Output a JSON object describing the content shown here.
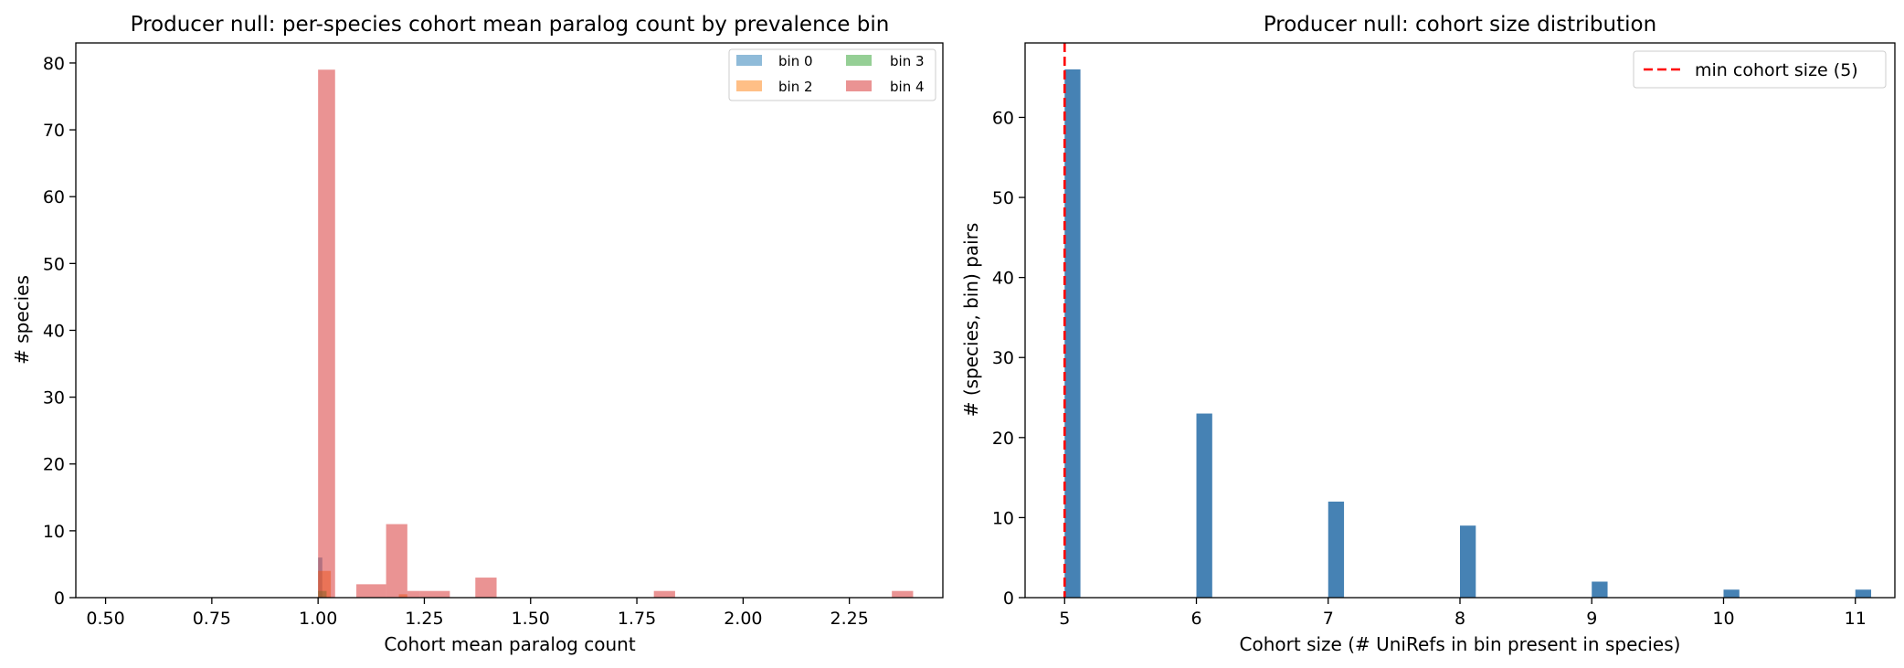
{
  "chart_data": [
    {
      "type": "bar",
      "title": "Producer null: per-species cohort mean paralog count by prevalence bin",
      "xlabel": "Cohort mean paralog count",
      "ylabel": "# species",
      "xlim": [
        0.43,
        2.47
      ],
      "ylim": [
        0,
        83
      ],
      "xticks": [
        "0.50",
        "0.75",
        "1.00",
        "1.25",
        "1.50",
        "1.75",
        "2.00",
        "2.25"
      ],
      "yticks": [
        "0",
        "10",
        "20",
        "30",
        "40",
        "50",
        "60",
        "70",
        "80"
      ],
      "grid": false,
      "legend_position": "top-right",
      "legend_columns": 2,
      "series": [
        {
          "name": "bin 0",
          "color": "#1f77b4",
          "opacity": 0.5,
          "bins": [
            [
              1.0,
              1.01,
              6
            ]
          ]
        },
        {
          "name": "bin 2",
          "color": "#ff7f0e",
          "opacity": 0.5,
          "bins": [
            [
              1.0,
              1.03,
              4
            ],
            [
              1.19,
              1.21,
              0.5
            ]
          ]
        },
        {
          "name": "bin 3",
          "color": "#2ca02c",
          "opacity": 0.5,
          "bins": [
            [
              1.0,
              1.02,
              1
            ]
          ]
        },
        {
          "name": "bin 4",
          "color": "#d62728",
          "opacity": 0.5,
          "bins": [
            [
              1.0,
              1.04,
              79
            ],
            [
              1.09,
              1.16,
              2
            ],
            [
              1.16,
              1.21,
              11
            ],
            [
              1.21,
              1.24,
              1
            ],
            [
              1.24,
              1.31,
              1
            ],
            [
              1.37,
              1.42,
              3
            ],
            [
              1.79,
              1.84,
              1
            ],
            [
              2.35,
              2.4,
              1
            ]
          ]
        }
      ]
    },
    {
      "type": "bar",
      "title": "Producer null: cohort size distribution",
      "xlabel": "Cohort size (# UniRefs in bin present in species)",
      "ylabel": "# (species, bin) pairs",
      "xlim": [
        4.7,
        11.3
      ],
      "ylim": [
        0,
        69.3
      ],
      "xticks": [
        "5",
        "6",
        "7",
        "8",
        "9",
        "10",
        "11"
      ],
      "yticks": [
        "0",
        "10",
        "20",
        "30",
        "40",
        "50",
        "60"
      ],
      "grid": false,
      "legend_position": "top-right",
      "bar_color": "#4682b4",
      "categories": [
        5,
        6,
        7,
        8,
        9,
        10,
        11
      ],
      "values": [
        66,
        23,
        12,
        9,
        2,
        1,
        1
      ],
      "reference_line": {
        "x": 5,
        "label": "min cohort size (5)",
        "color": "#ff0000",
        "style": "dashed"
      }
    }
  ]
}
